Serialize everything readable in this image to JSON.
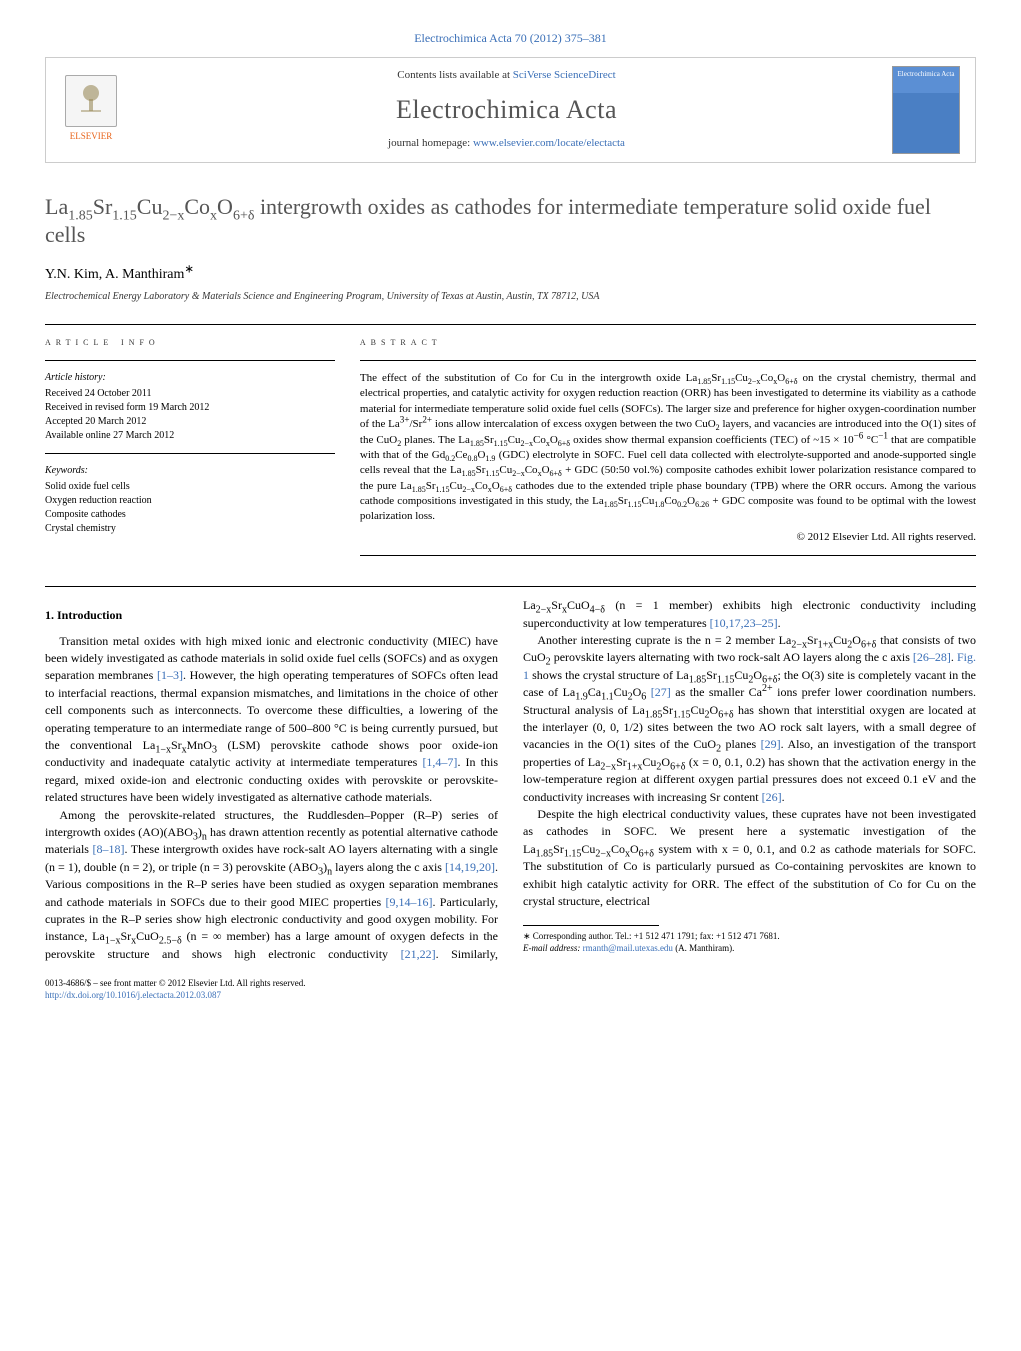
{
  "top_link": "Electrochimica Acta 70 (2012) 375–381",
  "header": {
    "contents_text": "Contents lists available at ",
    "contents_link": "SciVerse ScienceDirect",
    "journal_name": "Electrochimica Acta",
    "homepage_text": "journal homepage: ",
    "homepage_link": "www.elsevier.com/locate/electacta",
    "publisher_label": "ELSEVIER",
    "cover_text": "Electrochimica Acta"
  },
  "title_html": "La<sub>1.85</sub>Sr<sub>1.15</sub>Cu<sub>2−x</sub>Co<sub>x</sub>O<sub>6+δ</sub> intergrowth oxides as cathodes for intermediate temperature solid oxide fuel cells",
  "authors_html": "Y.N. Kim, A. Manthiram<sup>∗</sup>",
  "affiliation": "Electrochemical Energy Laboratory & Materials Science and Engineering Program, University of Texas at Austin, Austin, TX 78712, USA",
  "article_info": {
    "head": "ARTICLE INFO",
    "history_head": "Article history:",
    "history": [
      "Received 24 October 2011",
      "Received in revised form 19 March 2012",
      "Accepted 20 March 2012",
      "Available online 27 March 2012"
    ],
    "keywords_head": "Keywords:",
    "keywords": [
      "Solid oxide fuel cells",
      "Oxygen reduction reaction",
      "Composite cathodes",
      "Crystal chemistry"
    ]
  },
  "abstract": {
    "head": "ABSTRACT",
    "text_html": "The effect of the substitution of Co for Cu in the intergrowth oxide La<sub>1.85</sub>Sr<sub>1.15</sub>Cu<sub>2−x</sub>Co<sub>x</sub>O<sub>6+δ</sub> on the crystal chemistry, thermal and electrical properties, and catalytic activity for oxygen reduction reaction (ORR) has been investigated to determine its viability as a cathode material for intermediate temperature solid oxide fuel cells (SOFCs). The larger size and preference for higher oxygen-coordination number of the La<sup>3+</sup>/Sr<sup>2+</sup> ions allow intercalation of excess oxygen between the two CuO<sub>2</sub> layers, and vacancies are introduced into the O(1) sites of the CuO<sub>2</sub> planes. The La<sub>1.85</sub>Sr<sub>1.15</sub>Cu<sub>2−x</sub>Co<sub>x</sub>O<sub>6+δ</sub> oxides show thermal expansion coefficients (TEC) of ~15 × 10<sup>−6</sup> °C<sup>−1</sup> that are compatible with that of the Gd<sub>0.2</sub>Ce<sub>0.8</sub>O<sub>1.9</sub> (GDC) electrolyte in SOFC. Fuel cell data collected with electrolyte-supported and anode-supported single cells reveal that the La<sub>1.85</sub>Sr<sub>1.15</sub>Cu<sub>2−x</sub>Co<sub>x</sub>O<sub>6+δ</sub> + GDC (50:50 vol.%) composite cathodes exhibit lower polarization resistance compared to the pure La<sub>1.85</sub>Sr<sub>1.15</sub>Cu<sub>2−x</sub>Co<sub>x</sub>O<sub>6+δ</sub> cathodes due to the extended triple phase boundary (TPB) where the ORR occurs. Among the various cathode compositions investigated in this study, the La<sub>1.85</sub>Sr<sub>1.15</sub>Cu<sub>1.8</sub>Co<sub>0.2</sub>O<sub>6.26</sub> + GDC composite was found to be optimal with the lowest polarization loss.",
    "copyright": "© 2012 Elsevier Ltd. All rights reserved."
  },
  "body": {
    "intro_title": "1. Introduction",
    "p1_html": "Transition metal oxides with high mixed ionic and electronic conductivity (MIEC) have been widely investigated as cathode materials in solid oxide fuel cells (SOFCs) and as oxygen separation membranes <span class=\"ref-link\">[1–3]</span>. However, the high operating temperatures of SOFCs often lead to interfacial reactions, thermal expansion mismatches, and limitations in the choice of other cell components such as interconnects. To overcome these difficulties, a lowering of the operating temperature to an intermediate range of 500–800 °C is being currently pursued, but the conventional La<sub>1−x</sub>Sr<sub>x</sub>MnO<sub>3</sub> (LSM) perovskite cathode shows poor oxide-ion conductivity and inadequate catalytic activity at intermediate temperatures <span class=\"ref-link\">[1,4–7]</span>. In this regard, mixed oxide-ion and electronic conducting oxides with perovskite or perovskite-related structures have been widely investigated as alternative cathode materials.",
    "p2_html": "Among the perovskite-related structures, the Ruddlesden–Popper (R–P) series of intergrowth oxides (AO)(ABO<sub>3</sub>)<sub>n</sub> has drawn attention recently as potential alternative cathode materials <span class=\"ref-link\">[8–18]</span>. These intergrowth oxides have rock-salt AO layers alternating with a single (n = 1), double (n = 2), or triple (n = 3) perovskite (ABO<sub>3</sub>)<sub>n</sub> layers along the c axis <span class=\"ref-link\">[14,19,20]</span>. Various compositions in the R–P series have been studied as oxygen separation membranes and cathode materials in SOFCs due to their good MIEC properties <span class=\"ref-link\">[9,14–16]</span>. Particularly, cuprates in the R–P series show high electronic conductivity and good oxygen mobility. For instance, La<sub>1−x</sub>Sr<sub>x</sub>CuO<sub>2.5−δ</sub> (n = ∞ member) has a large amount of oxygen defects in the perovskite structure and shows high electronic conductivity <span class=\"ref-link\">[21,22]</span>. Similarly, La<sub>2−x</sub>Sr<sub>x</sub>CuO<sub>4−δ</sub> (n = 1 member) exhibits high electronic conductivity including superconductivity at low temperatures <span class=\"ref-link\">[10,17,23–25]</span>.",
    "p3_html": "Another interesting cuprate is the n = 2 member La<sub>2−x</sub>Sr<sub>1+x</sub>Cu<sub>2</sub>O<sub>6+δ</sub> that consists of two CuO<sub>2</sub> perovskite layers alternating with two rock-salt AO layers along the c axis <span class=\"ref-link\">[26–28]</span>. <span class=\"ref-link\">Fig. 1</span> shows the crystal structure of La<sub>1.85</sub>Sr<sub>1.15</sub>Cu<sub>2</sub>O<sub>6+δ</sub>; the O(3) site is completely vacant in the case of La<sub>1.9</sub>Ca<sub>1.1</sub>Cu<sub>2</sub>O<sub>6</sub> <span class=\"ref-link\">[27]</span> as the smaller Ca<sup>2+</sup> ions prefer lower coordination numbers. Structural analysis of La<sub>1.85</sub>Sr<sub>1.15</sub>Cu<sub>2</sub>O<sub>6+δ</sub> has shown that interstitial oxygen are located at the interlayer (0, 0, 1/2) sites between the two AO rock salt layers, with a small degree of vacancies in the O(1) sites of the CuO<sub>2</sub> planes <span class=\"ref-link\">[29]</span>. Also, an investigation of the transport properties of La<sub>2−x</sub>Sr<sub>1+x</sub>Cu<sub>2</sub>O<sub>6+δ</sub> (x = 0, 0.1, 0.2) has shown that the activation energy in the low-temperature region at different oxygen partial pressures does not exceed 0.1 eV and the conductivity increases with increasing Sr content <span class=\"ref-link\">[26]</span>.",
    "p4_html": "Despite the high electrical conductivity values, these cuprates have not been investigated as cathodes in SOFC. We present here a systematic investigation of the La<sub>1.85</sub>Sr<sub>1.15</sub>Cu<sub>2−x</sub>Co<sub>x</sub>O<sub>6+δ</sub> system with x = 0, 0.1, and 0.2 as cathode materials for SOFC. The substitution of Co is particularly pursued as Co-containing pervoskites are known to exhibit high catalytic activity for ORR. The effect of the substitution of Co for Cu on the crystal structure, electrical"
  },
  "footnote": {
    "corresp_html": "∗ Corresponding author. Tel.: +1 512 471 1791; fax: +1 512 471 7681.",
    "email_label": "E-mail address: ",
    "email": "rmanth@mail.utexas.edu",
    "email_suffix": " (A. Manthiram)."
  },
  "footer": {
    "issn": "0013-4686/$ – see front matter © 2012 Elsevier Ltd. All rights reserved.",
    "doi": "http://dx.doi.org/10.1016/j.electacta.2012.03.087"
  },
  "colors": {
    "link": "#3a6fb7",
    "title_gray": "#555555",
    "elsevier_orange": "#e8641b"
  }
}
